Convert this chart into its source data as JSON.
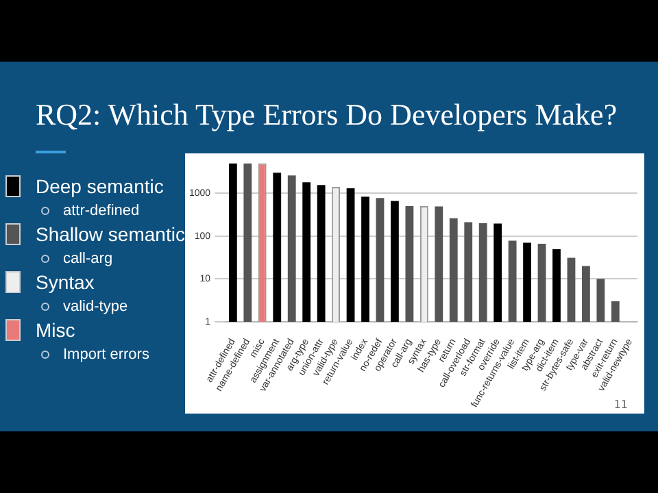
{
  "chart_data": {
    "type": "bar",
    "title": "RQ2: Which Type Errors Do Developers Make?",
    "categories": [
      "attr-defined",
      "name-defined",
      "misc",
      "assignment",
      "var-annotated",
      "arg-type",
      "union-attr",
      "valid-type",
      "return-value",
      "index",
      "no-redef",
      "operator",
      "call-arg",
      "syntax",
      "has-type",
      "return",
      "call-overload",
      "str-format",
      "override",
      "func-returns-value",
      "list-item",
      "type-arg",
      "dict-item",
      "str-bytes-safe",
      "type-var",
      "abstract",
      "exit-return",
      "valid-newtype"
    ],
    "series": [
      {
        "name": "Deep semantic",
        "color": "#000000",
        "values": [
          5000,
          null,
          null,
          3000,
          null,
          1800,
          1550,
          null,
          1300,
          830,
          null,
          660,
          null,
          null,
          null,
          null,
          null,
          null,
          195,
          null,
          70,
          null,
          49,
          null,
          null,
          null,
          null,
          null
        ]
      },
      {
        "name": "Shallow semantic",
        "color": "#555555",
        "values": [
          null,
          5000,
          null,
          null,
          2600,
          null,
          null,
          null,
          null,
          null,
          770,
          null,
          500,
          null,
          490,
          260,
          210,
          200,
          null,
          78,
          null,
          66,
          null,
          31,
          20,
          10,
          3,
          1
        ]
      },
      {
        "name": "Syntax",
        "color": "#eeeeee",
        "values": [
          null,
          null,
          null,
          null,
          null,
          null,
          null,
          1400,
          null,
          null,
          null,
          null,
          null,
          500,
          null,
          null,
          null,
          null,
          null,
          null,
          null,
          null,
          null,
          null,
          null,
          null,
          null,
          null
        ]
      },
      {
        "name": "Misc",
        "color": "#e87a7a",
        "values": [
          null,
          null,
          5000,
          null,
          null,
          null,
          null,
          null,
          null,
          null,
          null,
          null,
          null,
          null,
          null,
          null,
          null,
          null,
          null,
          null,
          null,
          null,
          null,
          null,
          null,
          null,
          null,
          null
        ]
      }
    ],
    "annotations": [
      "attr-defined",
      "call-arg",
      "valid-type",
      "Import errors",
      "11"
    ],
    "log": "y",
    "ylim": [
      1,
      5000
    ],
    "yticks": [
      1,
      10,
      100,
      1000
    ],
    "grid": "y",
    "legend": "left"
  }
}
